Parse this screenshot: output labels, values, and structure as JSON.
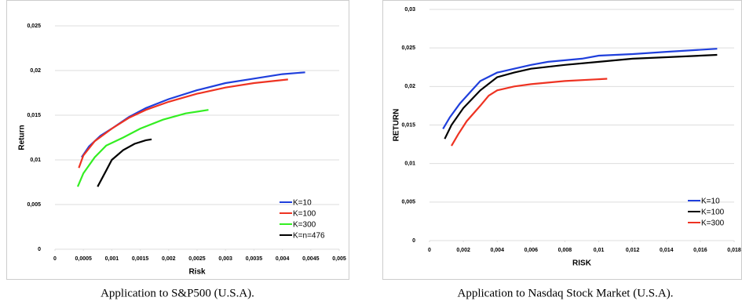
{
  "chart_data": [
    {
      "type": "line",
      "caption": "Application to S&P500 (U.S.A).",
      "xlabel": "Risk",
      "ylabel": "Return",
      "xlim": [
        0,
        0.005
      ],
      "ylim": [
        0,
        0.025
      ],
      "grid": true,
      "legend": "lower right",
      "xticks": [
        0,
        {
          "value": 0.0005,
          "label": "0,0005"
        },
        {
          "value": 0.001,
          "label": "0,001"
        },
        {
          "value": 0.0015,
          "label": "0,0015"
        },
        {
          "value": 0.002,
          "label": "0,002"
        },
        {
          "value": 0.0025,
          "label": "0,0025"
        },
        {
          "value": 0.003,
          "label": "0,003"
        },
        {
          "value": 0.0035,
          "label": "0,0035"
        },
        {
          "value": 0.004,
          "label": "0,004"
        },
        {
          "value": 0.0045,
          "label": "0,0045"
        },
        {
          "value": 0.005,
          "label": "0,005"
        }
      ],
      "yticks": [
        0,
        {
          "value": 0.005,
          "label": "0,005"
        },
        {
          "value": 0.01,
          "label": "0,01"
        },
        {
          "value": 0.015,
          "label": "0,015"
        },
        {
          "value": 0.02,
          "label": "0,02"
        },
        {
          "value": 0.025,
          "label": "0,025"
        }
      ],
      "series": [
        {
          "name": "K=10",
          "color": "#1f3fdc",
          "x": [
            0.00047,
            0.0006,
            0.0008,
            0.001,
            0.0013,
            0.0016,
            0.002,
            0.0025,
            0.003,
            0.0035,
            0.004,
            0.0044
          ],
          "values": [
            0.0103,
            0.0115,
            0.0127,
            0.0135,
            0.0148,
            0.0158,
            0.0168,
            0.0178,
            0.0186,
            0.0191,
            0.0196,
            0.0198
          ]
        },
        {
          "name": "K=100",
          "color": "#ee3322",
          "x": [
            0.00042,
            0.0005,
            0.0007,
            0.001,
            0.0013,
            0.0016,
            0.002,
            0.0025,
            0.003,
            0.0035,
            0.0041
          ],
          "values": [
            0.0091,
            0.0105,
            0.0121,
            0.0135,
            0.0147,
            0.0156,
            0.0165,
            0.0174,
            0.0181,
            0.0186,
            0.019
          ]
        },
        {
          "name": "K=300",
          "color": "#33ee22",
          "x": [
            0.0004,
            0.0005,
            0.0007,
            0.0009,
            0.0012,
            0.0015,
            0.0019,
            0.0023,
            0.0027
          ],
          "values": [
            0.007,
            0.0085,
            0.0103,
            0.0116,
            0.0125,
            0.0135,
            0.0145,
            0.0152,
            0.0156
          ]
        },
        {
          "name": "K=n=476",
          "color": "#000000",
          "x": [
            0.00075,
            0.0009,
            0.001,
            0.0012,
            0.0014,
            0.0016,
            0.0017
          ],
          "values": [
            0.007,
            0.0088,
            0.01,
            0.0111,
            0.0118,
            0.0122,
            0.0123
          ]
        }
      ]
    },
    {
      "type": "line",
      "caption": "Application to Nasdaq Stock Market (U.S.A).",
      "xlabel": "RISK",
      "ylabel": "RETURN",
      "xlim": [
        0,
        0.018
      ],
      "ylim": [
        0,
        0.03
      ],
      "grid": true,
      "legend": "lower right",
      "xticks": [
        0,
        {
          "value": 0.002,
          "label": "0,002"
        },
        {
          "value": 0.004,
          "label": "0,004"
        },
        {
          "value": 0.006,
          "label": "0,006"
        },
        {
          "value": 0.008,
          "label": "0,008"
        },
        {
          "value": 0.01,
          "label": "0,01"
        },
        {
          "value": 0.012,
          "label": "0,012"
        },
        {
          "value": 0.014,
          "label": "0,014"
        },
        {
          "value": 0.016,
          "label": "0,016"
        },
        {
          "value": 0.018,
          "label": "0,018"
        }
      ],
      "yticks": [
        0,
        {
          "value": 0.005,
          "label": "0,005"
        },
        {
          "value": 0.01,
          "label": "0,01"
        },
        {
          "value": 0.015,
          "label": "0,015"
        },
        {
          "value": 0.02,
          "label": "0,02"
        },
        {
          "value": 0.025,
          "label": "0,025"
        },
        {
          "value": 0.03,
          "label": "0,03"
        }
      ],
      "series": [
        {
          "name": "K=10",
          "color": "#1f3fdc",
          "x": [
            0.0008,
            0.0012,
            0.0018,
            0.0025,
            0.003,
            0.004,
            0.005,
            0.006,
            0.007,
            0.009,
            0.01,
            0.012,
            0.014,
            0.017
          ],
          "values": [
            0.0145,
            0.016,
            0.0178,
            0.0195,
            0.0207,
            0.0218,
            0.0223,
            0.0228,
            0.0232,
            0.0236,
            0.024,
            0.0242,
            0.0245,
            0.0249
          ]
        },
        {
          "name": "K=100",
          "color": "#000000",
          "x": [
            0.0009,
            0.0013,
            0.002,
            0.003,
            0.004,
            0.005,
            0.006,
            0.008,
            0.01,
            0.012,
            0.014,
            0.017
          ],
          "values": [
            0.0132,
            0.015,
            0.0172,
            0.0195,
            0.0212,
            0.0218,
            0.0223,
            0.0228,
            0.0232,
            0.0236,
            0.0238,
            0.0241
          ]
        },
        {
          "name": "K=300",
          "color": "#ee3322",
          "x": [
            0.0013,
            0.0017,
            0.0022,
            0.003,
            0.0035,
            0.004,
            0.005,
            0.006,
            0.008,
            0.0105
          ],
          "values": [
            0.0123,
            0.0138,
            0.0155,
            0.0175,
            0.0188,
            0.0195,
            0.02,
            0.0203,
            0.0207,
            0.021
          ]
        }
      ]
    }
  ]
}
